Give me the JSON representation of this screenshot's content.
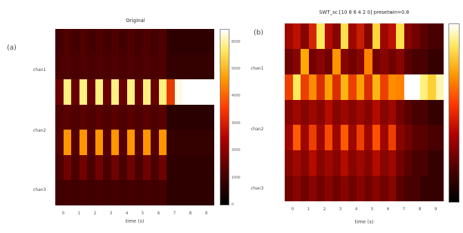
{
  "figure": {
    "panel_a_letter": "(a)",
    "panel_b_letter": "(b)"
  },
  "chart_data": [
    {
      "type": "heatmap",
      "title": "Original",
      "xlabel": "time (s)",
      "ylabel": "",
      "y_labels": [
        "chan1",
        "chan2",
        "chan3"
      ],
      "x_ticks": [
        "0",
        "1",
        "2",
        "3",
        "4",
        "5",
        "6",
        "7",
        "8",
        "9"
      ],
      "colorbar_ticks": [
        "0",
        "1000",
        "2000",
        "3000",
        "4000",
        "5000",
        "6000"
      ],
      "vmax": 6500,
      "rows": 7,
      "cols": 20,
      "values": [
        [
          900,
          1100,
          900,
          1100,
          900,
          1100,
          900,
          1100,
          900,
          1100,
          900,
          1100,
          900,
          1100,
          500,
          500,
          500,
          500,
          500,
          500
        ],
        [
          1000,
          1100,
          1000,
          1100,
          1000,
          1100,
          1000,
          1100,
          1000,
          1100,
          1000,
          1100,
          1000,
          1100,
          600,
          600,
          600,
          600,
          600,
          600
        ],
        [
          1500,
          6000,
          1500,
          6000,
          1500,
          6000,
          1500,
          6000,
          1500,
          6000,
          1500,
          6000,
          1500,
          6000,
          3500,
          6400,
          6500,
          6500,
          6500,
          6500
        ],
        [
          1100,
          1300,
          1100,
          1300,
          1100,
          1300,
          1100,
          1300,
          1100,
          1300,
          1100,
          1300,
          1100,
          1300,
          400,
          400,
          400,
          400,
          400,
          400
        ],
        [
          1200,
          4800,
          1200,
          4800,
          1200,
          4800,
          1200,
          4800,
          1200,
          4800,
          1200,
          4800,
          1200,
          4800,
          600,
          600,
          600,
          600,
          600,
          600
        ],
        [
          1000,
          1600,
          1000,
          1600,
          1000,
          1600,
          1000,
          1600,
          1000,
          1600,
          1000,
          1600,
          1000,
          1600,
          500,
          500,
          500,
          500,
          500,
          500
        ],
        [
          800,
          900,
          800,
          900,
          800,
          900,
          800,
          900,
          800,
          900,
          800,
          900,
          800,
          900,
          500,
          500,
          500,
          500,
          500,
          500
        ]
      ]
    },
    {
      "type": "heatmap",
      "title": "SWT_sc [10 8 6 4 2 0] presetwin=0.8",
      "xlabel": "time (s)",
      "ylabel": "",
      "y_labels": [
        "chan1",
        "chan2",
        "chan3"
      ],
      "x_ticks": [
        "0",
        "1",
        "2",
        "3",
        "4",
        "5",
        "6",
        "7",
        "8",
        "9"
      ],
      "colorbar_ticks": [],
      "vmax": 1,
      "rows": 7,
      "cols": 20,
      "values": [
        [
          0.35,
          0.42,
          0.3,
          0.48,
          0.9,
          0.4,
          0.3,
          0.88,
          0.35,
          0.45,
          0.3,
          0.86,
          0.35,
          0.42,
          0.88,
          0.3,
          0.25,
          0.2,
          0.15,
          0.15
        ],
        [
          0.25,
          0.3,
          0.78,
          0.25,
          0.3,
          0.25,
          0.74,
          0.3,
          0.25,
          0.3,
          0.7,
          0.25,
          0.3,
          0.25,
          0.3,
          0.2,
          0.15,
          0.15,
          0.1,
          0.1
        ],
        [
          0.55,
          0.9,
          0.55,
          0.72,
          0.5,
          0.76,
          0.5,
          0.8,
          0.55,
          0.76,
          0.5,
          0.8,
          0.55,
          0.72,
          0.7,
          1.0,
          1.0,
          0.92,
          0.85,
          0.95
        ],
        [
          0.3,
          0.35,
          0.3,
          0.35,
          0.3,
          0.4,
          0.3,
          0.35,
          0.3,
          0.35,
          0.3,
          0.4,
          0.3,
          0.35,
          0.25,
          0.2,
          0.15,
          0.15,
          0.1,
          0.1
        ],
        [
          0.35,
          0.62,
          0.35,
          0.55,
          0.35,
          0.58,
          0.35,
          0.62,
          0.35,
          0.55,
          0.35,
          0.6,
          0.35,
          0.55,
          0.3,
          0.25,
          0.2,
          0.2,
          0.15,
          0.15
        ],
        [
          0.3,
          0.35,
          0.3,
          0.4,
          0.3,
          0.35,
          0.3,
          0.4,
          0.3,
          0.35,
          0.3,
          0.4,
          0.3,
          0.35,
          0.25,
          0.2,
          0.15,
          0.15,
          0.1,
          0.1
        ],
        [
          0.25,
          0.3,
          0.25,
          0.3,
          0.25,
          0.3,
          0.25,
          0.3,
          0.25,
          0.3,
          0.25,
          0.3,
          0.25,
          0.3,
          0.2,
          0.15,
          0.15,
          0.1,
          0.1,
          0.1
        ]
      ]
    }
  ]
}
